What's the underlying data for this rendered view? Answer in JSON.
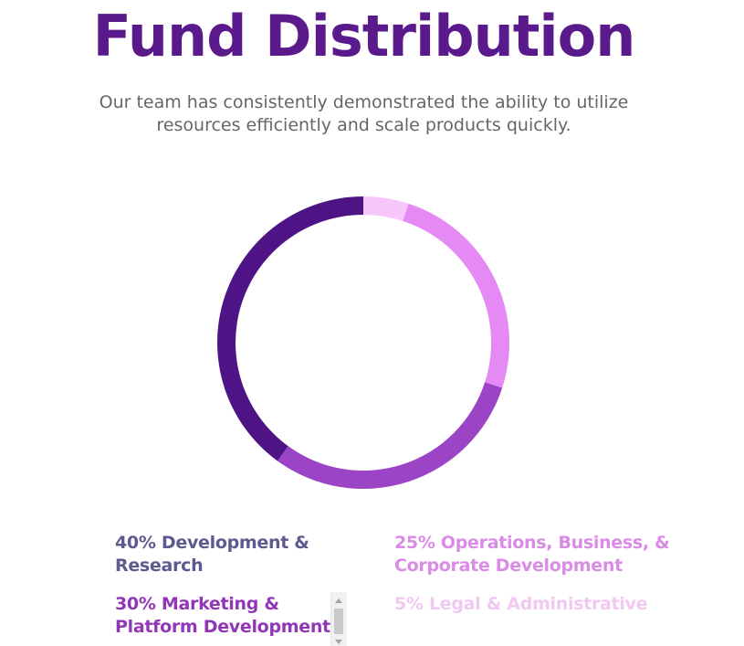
{
  "title": "Fund Distribution",
  "subtitle": {
    "line1": "Our team has consistently demonstrated the ability to utilize",
    "line2": "resources efficiently and scale products quickly."
  },
  "chart_data": {
    "type": "pie",
    "style": "donut",
    "slices": [
      {
        "value": 5,
        "label_line1": "5% Legal & Administrative",
        "label_line2": "",
        "color": "#f7c6fb",
        "text_color": "#f0c8f2"
      },
      {
        "value": 25,
        "label_line1": "25% Operations, Business, &",
        "label_line2": "Corporate Development",
        "color": "#e58af5",
        "text_color": "#d98be6"
      },
      {
        "value": 30,
        "label_line1": "30% Marketing &",
        "label_line2": "Platform Development",
        "color": "#9b44c6",
        "text_color": "#9236b8"
      },
      {
        "value": 40,
        "label_line1": "40% Development &",
        "label_line2": "Research",
        "color": "#4e1385",
        "text_color": "#5c5a8e"
      }
    ]
  }
}
